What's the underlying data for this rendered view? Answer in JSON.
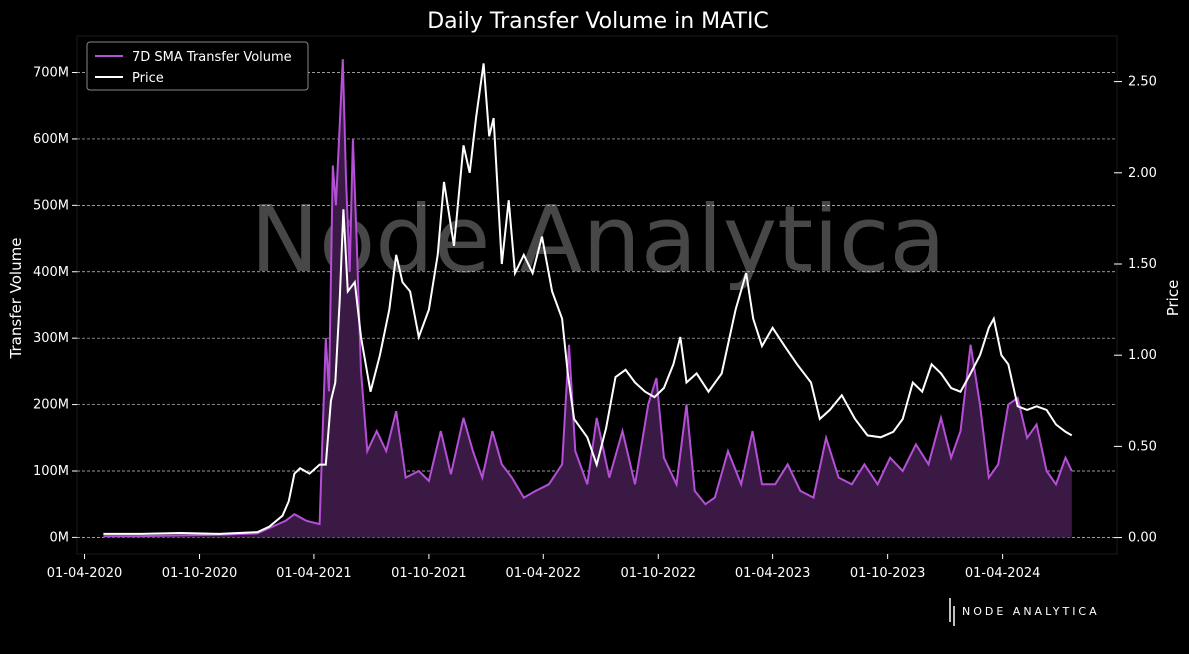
{
  "chart_data": {
    "type": "line",
    "title": "Daily Transfer Volume in MATIC",
    "xlabel": "",
    "ylabel": "Transfer Volume",
    "y2label": "Price",
    "x_ticks": [
      "01-04-2020",
      "01-10-2020",
      "01-04-2021",
      "01-10-2021",
      "01-04-2022",
      "01-10-2022",
      "01-04-2023",
      "01-10-2023",
      "01-04-2024"
    ],
    "y_ticks": [
      "0M",
      "100M",
      "200M",
      "300M",
      "400M",
      "500M",
      "600M",
      "700M"
    ],
    "y2_ticks": [
      "0.00",
      "0.50",
      "1.00",
      "1.50",
      "2.00",
      "2.50"
    ],
    "ylim": [
      -25,
      755
    ],
    "y2lim": [
      -0.09,
      2.75
    ],
    "xlim": [
      "2020-03-20",
      "2024-09-30"
    ],
    "grid": "horizontal dashed",
    "legend_position": "top-left",
    "watermark": "Node Analytica",
    "brand": "NODE ANALYTICA",
    "series": [
      {
        "name": "7D SMA Transfer Volume",
        "axis": "left",
        "unit": "M",
        "color": "#b44fd6",
        "fill_color": "#3a1a45",
        "points": [
          [
            "2020-05-01",
            2
          ],
          [
            "2020-07-01",
            2
          ],
          [
            "2020-09-01",
            3
          ],
          [
            "2020-11-01",
            4
          ],
          [
            "2021-01-01",
            6
          ],
          [
            "2021-02-15",
            25
          ],
          [
            "2021-03-01",
            35
          ],
          [
            "2021-03-20",
            25
          ],
          [
            "2021-04-10",
            20
          ],
          [
            "2021-04-20",
            300
          ],
          [
            "2021-04-25",
            220
          ],
          [
            "2021-05-01",
            560
          ],
          [
            "2021-05-06",
            500
          ],
          [
            "2021-05-12",
            620
          ],
          [
            "2021-05-17",
            720
          ],
          [
            "2021-05-22",
            540
          ],
          [
            "2021-05-28",
            400
          ],
          [
            "2021-06-02",
            600
          ],
          [
            "2021-06-08",
            450
          ],
          [
            "2021-06-15",
            250
          ],
          [
            "2021-06-25",
            130
          ],
          [
            "2021-07-10",
            160
          ],
          [
            "2021-07-25",
            130
          ],
          [
            "2021-08-10",
            190
          ],
          [
            "2021-08-25",
            90
          ],
          [
            "2021-09-15",
            100
          ],
          [
            "2021-10-01",
            85
          ],
          [
            "2021-10-20",
            160
          ],
          [
            "2021-11-05",
            95
          ],
          [
            "2021-11-25",
            180
          ],
          [
            "2021-12-10",
            130
          ],
          [
            "2021-12-25",
            90
          ],
          [
            "2022-01-10",
            160
          ],
          [
            "2022-01-25",
            110
          ],
          [
            "2022-02-10",
            90
          ],
          [
            "2022-03-01",
            60
          ],
          [
            "2022-03-20",
            70
          ],
          [
            "2022-04-10",
            80
          ],
          [
            "2022-05-01",
            110
          ],
          [
            "2022-05-12",
            290
          ],
          [
            "2022-05-22",
            130
          ],
          [
            "2022-06-10",
            80
          ],
          [
            "2022-06-25",
            180
          ],
          [
            "2022-07-15",
            90
          ],
          [
            "2022-08-05",
            160
          ],
          [
            "2022-08-25",
            80
          ],
          [
            "2022-09-15",
            200
          ],
          [
            "2022-09-28",
            240
          ],
          [
            "2022-10-10",
            120
          ],
          [
            "2022-10-30",
            80
          ],
          [
            "2022-11-15",
            200
          ],
          [
            "2022-11-28",
            70
          ],
          [
            "2022-12-15",
            50
          ],
          [
            "2022-12-30",
            60
          ],
          [
            "2023-01-20",
            130
          ],
          [
            "2023-02-10",
            80
          ],
          [
            "2023-02-28",
            160
          ],
          [
            "2023-03-15",
            80
          ],
          [
            "2023-04-05",
            80
          ],
          [
            "2023-04-25",
            110
          ],
          [
            "2023-05-15",
            70
          ],
          [
            "2023-06-05",
            60
          ],
          [
            "2023-06-25",
            150
          ],
          [
            "2023-07-15",
            90
          ],
          [
            "2023-08-05",
            80
          ],
          [
            "2023-08-25",
            110
          ],
          [
            "2023-09-15",
            80
          ],
          [
            "2023-10-05",
            120
          ],
          [
            "2023-10-25",
            100
          ],
          [
            "2023-11-15",
            140
          ],
          [
            "2023-12-05",
            110
          ],
          [
            "2023-12-25",
            180
          ],
          [
            "2024-01-10",
            120
          ],
          [
            "2024-01-25",
            160
          ],
          [
            "2024-02-10",
            290
          ],
          [
            "2024-02-25",
            200
          ],
          [
            "2024-03-10",
            90
          ],
          [
            "2024-03-25",
            110
          ],
          [
            "2024-04-10",
            200
          ],
          [
            "2024-04-25",
            210
          ],
          [
            "2024-05-10",
            150
          ],
          [
            "2024-05-25",
            170
          ],
          [
            "2024-06-10",
            100
          ],
          [
            "2024-06-25",
            80
          ],
          [
            "2024-07-10",
            120
          ],
          [
            "2024-07-20",
            100
          ]
        ]
      },
      {
        "name": "Price",
        "axis": "right",
        "color": "#ffffff",
        "points": [
          [
            "2020-05-01",
            0.02
          ],
          [
            "2020-07-01",
            0.02
          ],
          [
            "2020-09-01",
            0.025
          ],
          [
            "2020-11-01",
            0.02
          ],
          [
            "2021-01-01",
            0.03
          ],
          [
            "2021-01-20",
            0.06
          ],
          [
            "2021-02-10",
            0.12
          ],
          [
            "2021-02-20",
            0.2
          ],
          [
            "2021-03-01",
            0.35
          ],
          [
            "2021-03-10",
            0.38
          ],
          [
            "2021-03-25",
            0.35
          ],
          [
            "2021-04-10",
            0.4
          ],
          [
            "2021-04-20",
            0.4
          ],
          [
            "2021-04-28",
            0.75
          ],
          [
            "2021-05-05",
            0.85
          ],
          [
            "2021-05-12",
            1.3
          ],
          [
            "2021-05-18",
            1.8
          ],
          [
            "2021-05-25",
            1.35
          ],
          [
            "2021-06-05",
            1.4
          ],
          [
            "2021-06-15",
            1.1
          ],
          [
            "2021-06-30",
            0.8
          ],
          [
            "2021-07-15",
            1.0
          ],
          [
            "2021-07-30",
            1.25
          ],
          [
            "2021-08-10",
            1.55
          ],
          [
            "2021-08-20",
            1.4
          ],
          [
            "2021-09-01",
            1.35
          ],
          [
            "2021-09-15",
            1.1
          ],
          [
            "2021-10-01",
            1.25
          ],
          [
            "2021-10-15",
            1.55
          ],
          [
            "2021-10-25",
            1.95
          ],
          [
            "2021-11-10",
            1.6
          ],
          [
            "2021-11-25",
            2.15
          ],
          [
            "2021-12-05",
            2.0
          ],
          [
            "2021-12-15",
            2.3
          ],
          [
            "2021-12-27",
            2.6
          ],
          [
            "2022-01-05",
            2.2
          ],
          [
            "2022-01-12",
            2.3
          ],
          [
            "2022-01-25",
            1.5
          ],
          [
            "2022-02-05",
            1.85
          ],
          [
            "2022-02-15",
            1.45
          ],
          [
            "2022-03-01",
            1.55
          ],
          [
            "2022-03-15",
            1.45
          ],
          [
            "2022-03-30",
            1.65
          ],
          [
            "2022-04-15",
            1.35
          ],
          [
            "2022-05-01",
            1.2
          ],
          [
            "2022-05-10",
            0.9
          ],
          [
            "2022-05-20",
            0.65
          ],
          [
            "2022-06-10",
            0.55
          ],
          [
            "2022-06-25",
            0.4
          ],
          [
            "2022-07-10",
            0.6
          ],
          [
            "2022-07-25",
            0.88
          ],
          [
            "2022-08-10",
            0.92
          ],
          [
            "2022-08-25",
            0.85
          ],
          [
            "2022-09-10",
            0.8
          ],
          [
            "2022-09-25",
            0.77
          ],
          [
            "2022-10-10",
            0.82
          ],
          [
            "2022-10-25",
            0.95
          ],
          [
            "2022-11-05",
            1.1
          ],
          [
            "2022-11-15",
            0.85
          ],
          [
            "2022-12-01",
            0.9
          ],
          [
            "2022-12-20",
            0.8
          ],
          [
            "2023-01-10",
            0.9
          ],
          [
            "2023-02-01",
            1.25
          ],
          [
            "2023-02-18",
            1.45
          ],
          [
            "2023-03-01",
            1.2
          ],
          [
            "2023-03-15",
            1.05
          ],
          [
            "2023-04-01",
            1.15
          ],
          [
            "2023-04-20",
            1.05
          ],
          [
            "2023-05-10",
            0.95
          ],
          [
            "2023-06-01",
            0.85
          ],
          [
            "2023-06-15",
            0.65
          ],
          [
            "2023-07-01",
            0.7
          ],
          [
            "2023-07-20",
            0.78
          ],
          [
            "2023-08-10",
            0.65
          ],
          [
            "2023-08-30",
            0.56
          ],
          [
            "2023-09-20",
            0.55
          ],
          [
            "2023-10-10",
            0.58
          ],
          [
            "2023-10-25",
            0.65
          ],
          [
            "2023-11-10",
            0.85
          ],
          [
            "2023-11-25",
            0.8
          ],
          [
            "2023-12-10",
            0.95
          ],
          [
            "2023-12-25",
            0.9
          ],
          [
            "2024-01-10",
            0.82
          ],
          [
            "2024-01-25",
            0.8
          ],
          [
            "2024-02-10",
            0.9
          ],
          [
            "2024-02-25",
            1.0
          ],
          [
            "2024-03-10",
            1.15
          ],
          [
            "2024-03-18",
            1.2
          ],
          [
            "2024-03-30",
            1.0
          ],
          [
            "2024-04-10",
            0.95
          ],
          [
            "2024-04-25",
            0.72
          ],
          [
            "2024-05-10",
            0.7
          ],
          [
            "2024-05-25",
            0.72
          ],
          [
            "2024-06-10",
            0.7
          ],
          [
            "2024-06-25",
            0.62
          ],
          [
            "2024-07-10",
            0.58
          ],
          [
            "2024-07-20",
            0.56
          ]
        ]
      }
    ]
  }
}
